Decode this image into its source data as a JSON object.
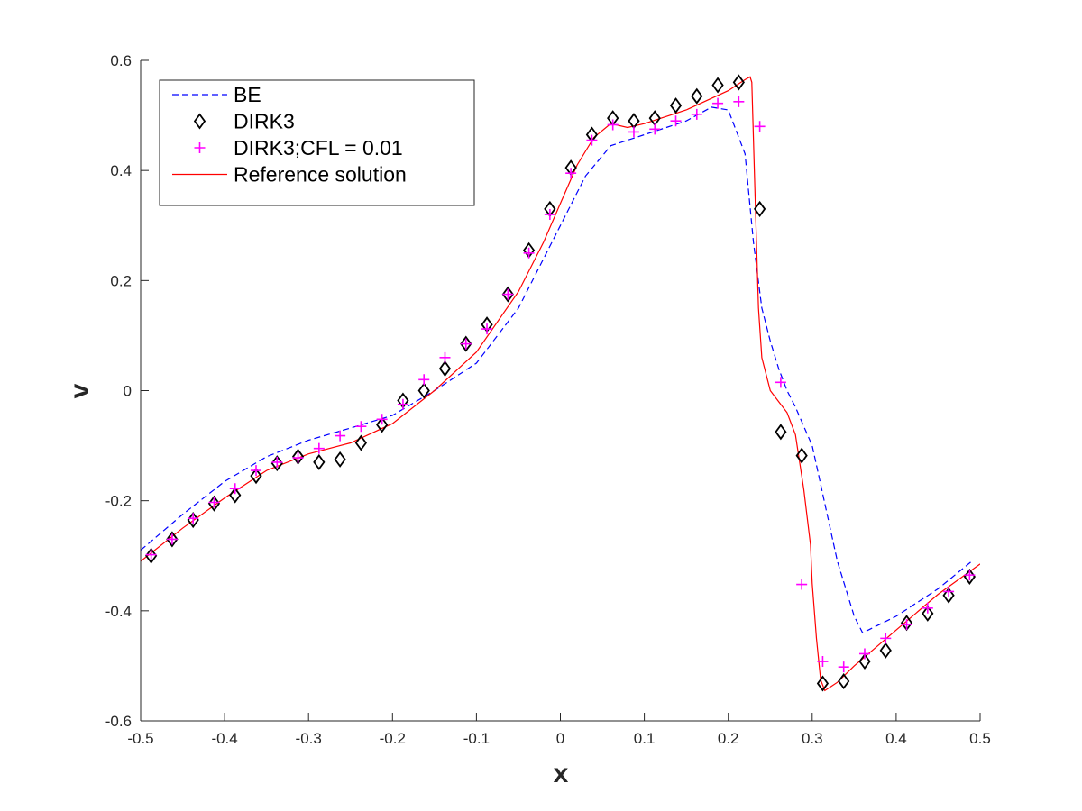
{
  "chart_data": {
    "type": "line",
    "title": "",
    "xlabel": "x",
    "ylabel": "v",
    "xlim": [
      -0.5,
      0.5
    ],
    "ylim": [
      -0.6,
      0.6
    ],
    "xticks": [
      -0.5,
      -0.4,
      -0.3,
      -0.2,
      -0.1,
      0,
      0.1,
      0.2,
      0.3,
      0.4,
      0.5
    ],
    "xtick_labels": [
      "-0.5",
      "-0.4",
      "-0.3",
      "-0.2",
      "-0.1",
      "0",
      "0.1",
      "0.2",
      "0.3",
      "0.4",
      "0.5"
    ],
    "yticks": [
      -0.6,
      -0.4,
      -0.2,
      0,
      0.2,
      0.4,
      0.6
    ],
    "ytick_labels": [
      "-0.6",
      "-0.4",
      "-0.2",
      "0",
      "0.2",
      "0.4",
      "0.6"
    ],
    "grid": false,
    "legend_position": "top-left",
    "series": [
      {
        "name": "BE",
        "style": "dashed-line",
        "color": "#0000ff",
        "x": [
          -0.5,
          -0.45,
          -0.4,
          -0.35,
          -0.3,
          -0.25,
          -0.2,
          -0.15,
          -0.1,
          -0.05,
          0.0,
          0.03,
          0.06,
          0.1,
          0.15,
          0.18,
          0.2,
          0.21,
          0.22,
          0.23,
          0.24,
          0.25,
          0.26,
          0.27,
          0.28,
          0.3,
          0.31,
          0.33,
          0.35,
          0.36,
          0.4,
          0.45,
          0.49
        ],
        "y": [
          -0.29,
          -0.225,
          -0.165,
          -0.12,
          -0.09,
          -0.068,
          -0.045,
          0.0,
          0.05,
          0.15,
          0.3,
          0.39,
          0.445,
          0.465,
          0.49,
          0.515,
          0.51,
          0.47,
          0.43,
          0.27,
          0.15,
          0.09,
          0.04,
          0.0,
          -0.03,
          -0.1,
          -0.17,
          -0.31,
          -0.41,
          -0.44,
          -0.41,
          -0.36,
          -0.31
        ]
      },
      {
        "name": "DIRK3",
        "style": "diamond-markers",
        "color": "#000000",
        "x": [
          -0.4875,
          -0.4625,
          -0.4375,
          -0.4125,
          -0.3875,
          -0.3625,
          -0.3375,
          -0.3125,
          -0.2875,
          -0.2625,
          -0.2375,
          -0.2125,
          -0.1875,
          -0.1625,
          -0.1375,
          -0.1125,
          -0.0875,
          -0.0625,
          -0.0375,
          -0.0125,
          0.0125,
          0.0375,
          0.0625,
          0.0875,
          0.1125,
          0.1375,
          0.1625,
          0.1875,
          0.2125,
          0.2375,
          0.2625,
          0.2875,
          0.3125,
          0.3375,
          0.3625,
          0.3875,
          0.4125,
          0.4375,
          0.4625,
          0.4875
        ],
        "y": [
          -0.3,
          -0.27,
          -0.235,
          -0.205,
          -0.19,
          -0.155,
          -0.132,
          -0.12,
          -0.13,
          -0.125,
          -0.095,
          -0.062,
          -0.018,
          0.0,
          0.04,
          0.085,
          0.12,
          0.175,
          0.255,
          0.33,
          0.405,
          0.465,
          0.495,
          0.49,
          0.495,
          0.518,
          0.535,
          0.555,
          0.56,
          0.33,
          -0.075,
          -0.118,
          -0.532,
          -0.528,
          -0.492,
          -0.472,
          -0.422,
          -0.405,
          -0.372,
          -0.338
        ]
      },
      {
        "name": "DIRK3;CFL = 0.01",
        "style": "plus-markers",
        "color": "#ff00ff",
        "x": [
          -0.4875,
          -0.4625,
          -0.4375,
          -0.4125,
          -0.3875,
          -0.3625,
          -0.3375,
          -0.3125,
          -0.2875,
          -0.2625,
          -0.2375,
          -0.2125,
          -0.1875,
          -0.1625,
          -0.1375,
          -0.1125,
          -0.0875,
          -0.0625,
          -0.0375,
          -0.0125,
          0.0125,
          0.0375,
          0.0625,
          0.0875,
          0.1125,
          0.1375,
          0.1625,
          0.1875,
          0.2125,
          0.2375,
          0.2625,
          0.2875,
          0.3125,
          0.3375,
          0.3625,
          0.3875,
          0.4125,
          0.4375,
          0.4625,
          0.4875
        ],
        "y": [
          -0.298,
          -0.27,
          -0.232,
          -0.203,
          -0.178,
          -0.145,
          -0.13,
          -0.122,
          -0.105,
          -0.082,
          -0.065,
          -0.052,
          -0.025,
          0.02,
          0.06,
          0.085,
          0.112,
          0.175,
          0.25,
          0.32,
          0.395,
          0.455,
          0.483,
          0.47,
          0.475,
          0.49,
          0.502,
          0.522,
          0.525,
          0.48,
          0.015,
          -0.352,
          -0.492,
          -0.502,
          -0.478,
          -0.45,
          -0.425,
          -0.395,
          -0.365,
          -0.335
        ]
      },
      {
        "name": "Reference solution",
        "style": "solid-line",
        "color": "#ff0000",
        "x": [
          -0.5,
          -0.45,
          -0.4,
          -0.35,
          -0.3,
          -0.25,
          -0.2,
          -0.15,
          -0.1,
          -0.05,
          -0.02,
          0.0,
          0.02,
          0.04,
          0.06,
          0.08,
          0.1,
          0.15,
          0.2,
          0.22,
          0.226,
          0.228,
          0.232,
          0.236,
          0.24,
          0.245,
          0.25,
          0.26,
          0.27,
          0.28,
          0.29,
          0.298,
          0.3,
          0.305,
          0.31,
          0.315,
          0.33,
          0.35,
          0.4,
          0.45,
          0.5
        ],
        "y": [
          -0.31,
          -0.25,
          -0.195,
          -0.145,
          -0.115,
          -0.095,
          -0.06,
          0.0,
          0.07,
          0.18,
          0.27,
          0.34,
          0.41,
          0.46,
          0.485,
          0.478,
          0.485,
          0.51,
          0.545,
          0.565,
          0.57,
          0.56,
          0.35,
          0.15,
          0.06,
          0.03,
          0.0,
          -0.02,
          -0.04,
          -0.08,
          -0.18,
          -0.28,
          -0.35,
          -0.45,
          -0.525,
          -0.545,
          -0.53,
          -0.5,
          -0.435,
          -0.37,
          -0.315
        ]
      }
    ]
  }
}
